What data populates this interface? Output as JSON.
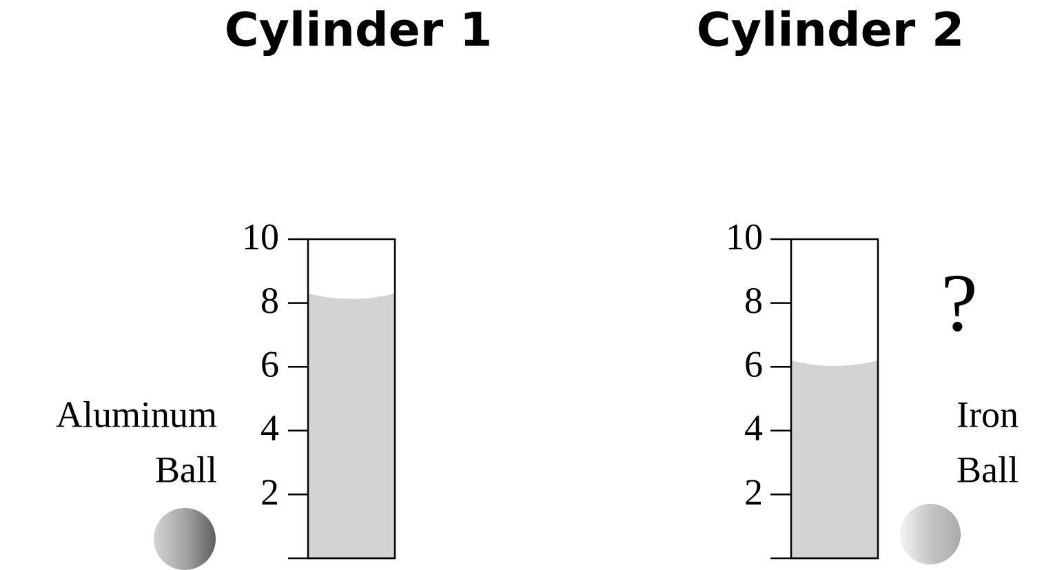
{
  "cylinders": [
    {
      "title": "Cylinder 1",
      "scale": [
        0,
        10
      ],
      "ticks": [
        2,
        4,
        6,
        8,
        10
      ],
      "level": 8.3,
      "ball": {
        "label_lines": [
          "Aluminum",
          "Ball"
        ]
      }
    },
    {
      "title": "Cylinder 2",
      "scale": [
        0,
        10
      ],
      "ticks": [
        2,
        4,
        6,
        8,
        10
      ],
      "level": 6.2,
      "annotation": "?",
      "ball": {
        "label_lines": [
          "Iron",
          "Ball"
        ]
      }
    }
  ]
}
